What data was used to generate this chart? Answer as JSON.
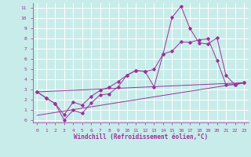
{
  "xlabel": "Windchill (Refroidissement éolien,°C)",
  "bg_color": "#c8ecea",
  "grid_color": "#ffffff",
  "line_color": "#993399",
  "xlim": [
    -0.5,
    23.5
  ],
  "ylim": [
    -0.2,
    11.5
  ],
  "xticks": [
    0,
    1,
    2,
    3,
    4,
    5,
    6,
    7,
    8,
    9,
    10,
    11,
    12,
    13,
    14,
    15,
    16,
    17,
    18,
    19,
    20,
    21,
    22,
    23
  ],
  "yticks": [
    0,
    1,
    2,
    3,
    4,
    5,
    6,
    7,
    8,
    9,
    10,
    11
  ],
  "line1_x": [
    0,
    1,
    2,
    3,
    4,
    5,
    6,
    7,
    8,
    9,
    10,
    11,
    12,
    13,
    14,
    15,
    16,
    17,
    18,
    19,
    20,
    21,
    22,
    23
  ],
  "line1_y": [
    2.8,
    2.2,
    1.65,
    0.05,
    1.0,
    0.7,
    1.7,
    2.5,
    2.6,
    3.3,
    4.45,
    4.9,
    4.8,
    3.3,
    6.5,
    10.1,
    11.2,
    9.0,
    7.6,
    7.5,
    8.1,
    4.4,
    3.5,
    3.7
  ],
  "line2_x": [
    0,
    1,
    2,
    3,
    4,
    5,
    6,
    7,
    8,
    9,
    10,
    11,
    12,
    13,
    14,
    15,
    16,
    17,
    18,
    19,
    20,
    21,
    22,
    23
  ],
  "line2_y": [
    2.8,
    2.2,
    1.65,
    0.55,
    1.8,
    1.5,
    2.35,
    2.95,
    3.25,
    3.8,
    4.45,
    4.9,
    4.8,
    5.0,
    6.5,
    6.8,
    7.7,
    7.65,
    7.9,
    8.0,
    5.9,
    3.5,
    3.5,
    3.7
  ],
  "line3_x": [
    0,
    23
  ],
  "line3_y": [
    2.8,
    3.7
  ],
  "line4_x": [
    0,
    23
  ],
  "line4_y": [
    0.5,
    3.7
  ]
}
